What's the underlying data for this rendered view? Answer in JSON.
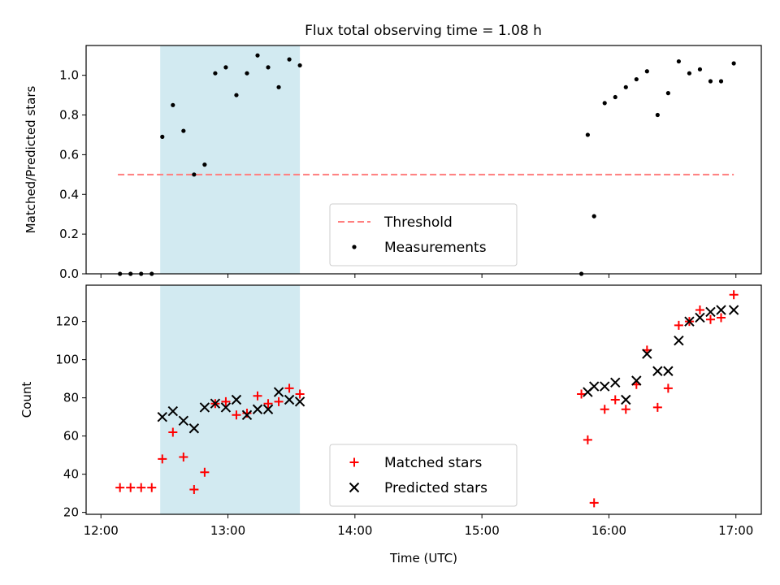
{
  "figure_title": "Flux total observing time = 1.08 h",
  "chart_data": [
    {
      "type": "scatter",
      "ylabel": "Matched/Predicted stars",
      "xlabel": "",
      "ylim": [
        0,
        1.15
      ],
      "yticks": [
        0.0,
        0.2,
        0.4,
        0.6,
        0.8,
        1.0
      ],
      "ytick_labels": [
        "0.0",
        "0.2",
        "0.4",
        "0.6",
        "0.8",
        "1.0"
      ],
      "xlim": [
        "12:00",
        "17:00"
      ],
      "x_tick_labels": [],
      "grid": false,
      "legend_position": "lower-center",
      "highlight_span": {
        "x_start": "12:28",
        "x_end": "13:34",
        "color": "#add8e6"
      },
      "threshold": {
        "name": "Threshold",
        "value": 0.5,
        "x_start": "12:08",
        "x_end": "16:59",
        "color": "#ff7f7f",
        "style": "dashed"
      },
      "series": [
        {
          "name": "Measurements",
          "marker": "point",
          "color": "#000000",
          "points": [
            [
              "12:09",
              0.0
            ],
            [
              "12:14",
              0.0
            ],
            [
              "12:19",
              0.0
            ],
            [
              "12:24",
              0.0
            ],
            [
              "12:29",
              0.69
            ],
            [
              "12:34",
              0.85
            ],
            [
              "12:39",
              0.72
            ],
            [
              "12:44",
              0.5
            ],
            [
              "12:49",
              0.55
            ],
            [
              "12:54",
              1.01
            ],
            [
              "12:59",
              1.04
            ],
            [
              "13:04",
              0.9
            ],
            [
              "13:09",
              1.01
            ],
            [
              "13:14",
              1.1
            ],
            [
              "13:19",
              1.04
            ],
            [
              "13:24",
              0.94
            ],
            [
              "13:29",
              1.08
            ],
            [
              "13:34",
              1.05
            ],
            [
              "15:47",
              0.0
            ],
            [
              "15:50",
              0.7
            ],
            [
              "15:53",
              0.29
            ],
            [
              "15:58",
              0.86
            ],
            [
              "16:03",
              0.89
            ],
            [
              "16:08",
              0.94
            ],
            [
              "16:13",
              0.98
            ],
            [
              "16:18",
              1.02
            ],
            [
              "16:23",
              0.8
            ],
            [
              "16:28",
              0.91
            ],
            [
              "16:33",
              1.07
            ],
            [
              "16:38",
              1.01
            ],
            [
              "16:43",
              1.03
            ],
            [
              "16:48",
              0.97
            ],
            [
              "16:53",
              0.97
            ],
            [
              "16:59",
              1.06
            ]
          ]
        }
      ]
    },
    {
      "type": "scatter",
      "ylabel": "Count",
      "xlabel": "Time (UTC)",
      "ylim": [
        19,
        139
      ],
      "yticks": [
        20,
        40,
        60,
        80,
        100,
        120
      ],
      "ytick_labels": [
        "20",
        "40",
        "60",
        "80",
        "100",
        "120"
      ],
      "xlim": [
        "12:00",
        "17:00"
      ],
      "x_tick_labels": [
        "12:00",
        "13:00",
        "14:00",
        "15:00",
        "16:00",
        "17:00"
      ],
      "grid": false,
      "legend_position": "lower-center",
      "highlight_span": {
        "x_start": "12:28",
        "x_end": "13:34",
        "color": "#add8e6"
      },
      "series": [
        {
          "name": "Matched stars",
          "marker": "plus",
          "color": "#ff0000",
          "points": [
            [
              "12:09",
              33
            ],
            [
              "12:14",
              33
            ],
            [
              "12:19",
              33
            ],
            [
              "12:24",
              33
            ],
            [
              "12:29",
              48
            ],
            [
              "12:34",
              62
            ],
            [
              "12:39",
              49
            ],
            [
              "12:44",
              32
            ],
            [
              "12:49",
              41
            ],
            [
              "12:54",
              77
            ],
            [
              "12:59",
              78
            ],
            [
              "13:04",
              71
            ],
            [
              "13:09",
              72
            ],
            [
              "13:14",
              81
            ],
            [
              "13:19",
              77
            ],
            [
              "13:24",
              78
            ],
            [
              "13:29",
              85
            ],
            [
              "13:34",
              82
            ],
            [
              "15:47",
              82
            ],
            [
              "15:50",
              58
            ],
            [
              "15:53",
              25
            ],
            [
              "15:58",
              74
            ],
            [
              "16:03",
              79
            ],
            [
              "16:08",
              74
            ],
            [
              "16:13",
              87
            ],
            [
              "16:18",
              105
            ],
            [
              "16:23",
              75
            ],
            [
              "16:28",
              85
            ],
            [
              "16:33",
              118
            ],
            [
              "16:38",
              120
            ],
            [
              "16:43",
              126
            ],
            [
              "16:48",
              121
            ],
            [
              "16:53",
              122
            ],
            [
              "16:59",
              134
            ]
          ]
        },
        {
          "name": "Predicted stars",
          "marker": "x",
          "color": "#000000",
          "points": [
            [
              "12:29",
              70
            ],
            [
              "12:34",
              73
            ],
            [
              "12:39",
              68
            ],
            [
              "12:44",
              64
            ],
            [
              "12:49",
              75
            ],
            [
              "12:54",
              77
            ],
            [
              "12:59",
              75
            ],
            [
              "13:04",
              79
            ],
            [
              "13:09",
              71
            ],
            [
              "13:14",
              74
            ],
            [
              "13:19",
              74
            ],
            [
              "13:24",
              83
            ],
            [
              "13:29",
              79
            ],
            [
              "13:34",
              78
            ],
            [
              "15:50",
              83
            ],
            [
              "15:53",
              86
            ],
            [
              "15:58",
              86
            ],
            [
              "16:03",
              88
            ],
            [
              "16:08",
              79
            ],
            [
              "16:13",
              89
            ],
            [
              "16:18",
              103
            ],
            [
              "16:23",
              94
            ],
            [
              "16:28",
              94
            ],
            [
              "16:33",
              110
            ],
            [
              "16:38",
              120
            ],
            [
              "16:43",
              122
            ],
            [
              "16:48",
              125
            ],
            [
              "16:53",
              126
            ],
            [
              "16:59",
              126
            ]
          ]
        }
      ]
    }
  ]
}
